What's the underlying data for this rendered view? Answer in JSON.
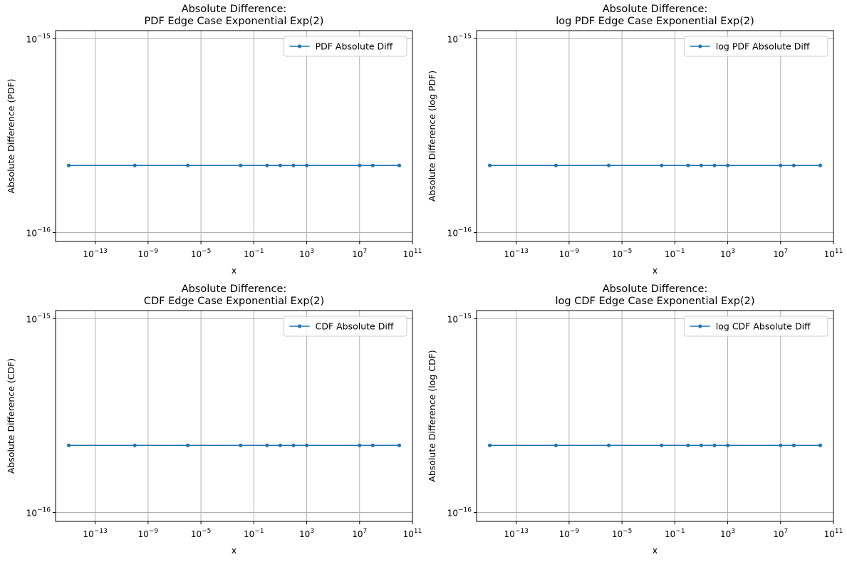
{
  "chart_data": [
    {
      "type": "line",
      "title": [
        "Absolute Difference:",
        "PDF Edge Case Exponential Exp(2)"
      ],
      "xlabel": "x",
      "ylabel": "Absolute Difference (PDF)",
      "xscale": "log",
      "yscale": "log",
      "xlim": [
        1e-16,
        100000000000.0
      ],
      "ylim": [
        9e-17,
        1.1e-15
      ],
      "x_ticks": [
        {
          "value": 1e-13,
          "label": "10^-13"
        },
        {
          "value": 1e-09,
          "label": "10^-9"
        },
        {
          "value": 1e-05,
          "label": "10^-5"
        },
        {
          "value": 0.1,
          "label": "10^-1"
        },
        {
          "value": 1000,
          "label": "10^3"
        },
        {
          "value": 10000000,
          "label": "10^7"
        },
        {
          "value": 100000000000.0,
          "label": "10^11"
        }
      ],
      "y_ticks": [
        {
          "value": 1e-16,
          "label": "10^-16"
        },
        {
          "value": 1e-15,
          "label": "10^-15"
        }
      ],
      "grid": true,
      "legend_position": "top-right",
      "series": [
        {
          "name": "PDF Absolute Diff",
          "color": "#1f77b4",
          "marker": "circle",
          "x": [
            1e-15,
            1e-10,
            1e-06,
            0.01,
            1,
            10,
            100,
            1000,
            10000000.0,
            100000000.0,
            10000000000.0
          ],
          "y": [
            2.22e-16,
            2.22e-16,
            2.22e-16,
            2.22e-16,
            2.22e-16,
            2.22e-16,
            2.22e-16,
            2.22e-16,
            2.22e-16,
            2.22e-16,
            2.22e-16
          ]
        }
      ]
    },
    {
      "type": "line",
      "title": [
        "Absolute Difference:",
        "log PDF Edge Case Exponential Exp(2)"
      ],
      "xlabel": "x",
      "ylabel": "Absolute Difference (log PDF)",
      "xscale": "log",
      "yscale": "log",
      "xlim": [
        1e-16,
        100000000000.0
      ],
      "ylim": [
        9e-17,
        1.1e-15
      ],
      "x_ticks": [
        {
          "value": 1e-13,
          "label": "10^-13"
        },
        {
          "value": 1e-09,
          "label": "10^-9"
        },
        {
          "value": 1e-05,
          "label": "10^-5"
        },
        {
          "value": 0.1,
          "label": "10^-1"
        },
        {
          "value": 1000,
          "label": "10^3"
        },
        {
          "value": 10000000,
          "label": "10^7"
        },
        {
          "value": 100000000000.0,
          "label": "10^11"
        }
      ],
      "y_ticks": [
        {
          "value": 1e-16,
          "label": "10^-16"
        },
        {
          "value": 1e-15,
          "label": "10^-15"
        }
      ],
      "grid": true,
      "legend_position": "top-right",
      "series": [
        {
          "name": "log PDF Absolute Diff",
          "color": "#1f77b4",
          "marker": "circle",
          "x": [
            1e-15,
            1e-10,
            1e-06,
            0.01,
            1,
            10,
            100,
            1000,
            10000000.0,
            100000000.0,
            10000000000.0
          ],
          "y": [
            2.22e-16,
            2.22e-16,
            2.22e-16,
            2.22e-16,
            2.22e-16,
            2.22e-16,
            2.22e-16,
            2.22e-16,
            2.22e-16,
            2.22e-16,
            2.22e-16
          ]
        }
      ]
    },
    {
      "type": "line",
      "title": [
        "Absolute Difference:",
        "CDF Edge Case Exponential Exp(2)"
      ],
      "xlabel": "x",
      "ylabel": "Absolute Difference (CDF)",
      "xscale": "log",
      "yscale": "log",
      "xlim": [
        1e-16,
        100000000000.0
      ],
      "ylim": [
        9e-17,
        1.1e-15
      ],
      "x_ticks": [
        {
          "value": 1e-13,
          "label": "10^-13"
        },
        {
          "value": 1e-09,
          "label": "10^-9"
        },
        {
          "value": 1e-05,
          "label": "10^-5"
        },
        {
          "value": 0.1,
          "label": "10^-1"
        },
        {
          "value": 1000,
          "label": "10^3"
        },
        {
          "value": 10000000,
          "label": "10^7"
        },
        {
          "value": 100000000000.0,
          "label": "10^11"
        }
      ],
      "y_ticks": [
        {
          "value": 1e-16,
          "label": "10^-16"
        },
        {
          "value": 1e-15,
          "label": "10^-15"
        }
      ],
      "grid": true,
      "legend_position": "top-right",
      "series": [
        {
          "name": "CDF Absolute Diff",
          "color": "#1f77b4",
          "marker": "circle",
          "x": [
            1e-15,
            1e-10,
            1e-06,
            0.01,
            1,
            10,
            100,
            1000,
            10000000.0,
            100000000.0,
            10000000000.0
          ],
          "y": [
            2.22e-16,
            2.22e-16,
            2.22e-16,
            2.22e-16,
            2.22e-16,
            2.22e-16,
            2.22e-16,
            2.22e-16,
            2.22e-16,
            2.22e-16,
            2.22e-16
          ]
        }
      ]
    },
    {
      "type": "line",
      "title": [
        "Absolute Difference:",
        "log CDF Edge Case Exponential Exp(2)"
      ],
      "xlabel": "x",
      "ylabel": "Absolute Difference (log CDF)",
      "xscale": "log",
      "yscale": "log",
      "xlim": [
        1e-16,
        100000000000.0
      ],
      "ylim": [
        9e-17,
        1.1e-15
      ],
      "x_ticks": [
        {
          "value": 1e-13,
          "label": "10^-13"
        },
        {
          "value": 1e-09,
          "label": "10^-9"
        },
        {
          "value": 1e-05,
          "label": "10^-5"
        },
        {
          "value": 0.1,
          "label": "10^-1"
        },
        {
          "value": 1000,
          "label": "10^3"
        },
        {
          "value": 10000000,
          "label": "10^7"
        },
        {
          "value": 100000000000.0,
          "label": "10^11"
        }
      ],
      "y_ticks": [
        {
          "value": 1e-16,
          "label": "10^-16"
        },
        {
          "value": 1e-15,
          "label": "10^-15"
        }
      ],
      "grid": true,
      "legend_position": "top-right",
      "series": [
        {
          "name": "log CDF Absolute Diff",
          "color": "#1f77b4",
          "marker": "circle",
          "x": [
            1e-15,
            1e-10,
            1e-06,
            0.01,
            1,
            10,
            100,
            1000,
            10000000.0,
            100000000.0,
            10000000000.0
          ],
          "y": [
            2.22e-16,
            2.22e-16,
            2.22e-16,
            2.22e-16,
            2.22e-16,
            2.22e-16,
            2.22e-16,
            2.22e-16,
            2.22e-16,
            2.22e-16,
            2.22e-16
          ]
        }
      ]
    }
  ]
}
